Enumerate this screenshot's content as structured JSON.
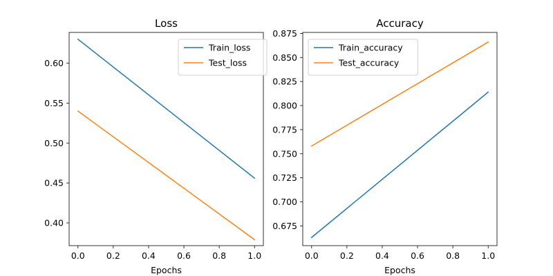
{
  "chart_data": [
    {
      "type": "line",
      "title": "Loss",
      "xlabel": "Epochs",
      "ylabel": "",
      "x": [
        0,
        1
      ],
      "xlim": [
        -0.05,
        1.05
      ],
      "ylim": [
        0.3715,
        0.6385
      ],
      "xticks": [
        0.0,
        0.2,
        0.4,
        0.6,
        0.8,
        1.0
      ],
      "yticks": [
        0.4,
        0.45,
        0.5,
        0.55,
        0.6
      ],
      "tick_decimals": {
        "x": 1,
        "y": 2
      },
      "grid": false,
      "legend": "upper right",
      "series": [
        {
          "name": "Train_loss",
          "values": [
            0.63,
            0.456
          ],
          "color": "#1f77b4"
        },
        {
          "name": "Test_loss",
          "values": [
            0.54,
            0.379
          ],
          "color": "#ff7f0e"
        }
      ]
    },
    {
      "type": "line",
      "title": "Accuracy",
      "xlabel": "Epochs",
      "ylabel": "",
      "x": [
        0,
        1
      ],
      "xlim": [
        -0.05,
        1.05
      ],
      "ylim": [
        0.6545,
        0.876
      ],
      "xticks": [
        0.0,
        0.2,
        0.4,
        0.6,
        0.8,
        1.0
      ],
      "yticks": [
        0.675,
        0.7,
        0.725,
        0.75,
        0.775,
        0.8,
        0.825,
        0.85,
        0.875
      ],
      "tick_decimals": {
        "x": 1,
        "y": 3
      },
      "grid": false,
      "legend": "upper left",
      "series": [
        {
          "name": "Train_accuracy",
          "values": [
            0.663,
            0.814
          ],
          "color": "#1f77b4"
        },
        {
          "name": "Test_accuracy",
          "values": [
            0.758,
            0.866
          ],
          "color": "#ff7f0e"
        }
      ]
    }
  ]
}
